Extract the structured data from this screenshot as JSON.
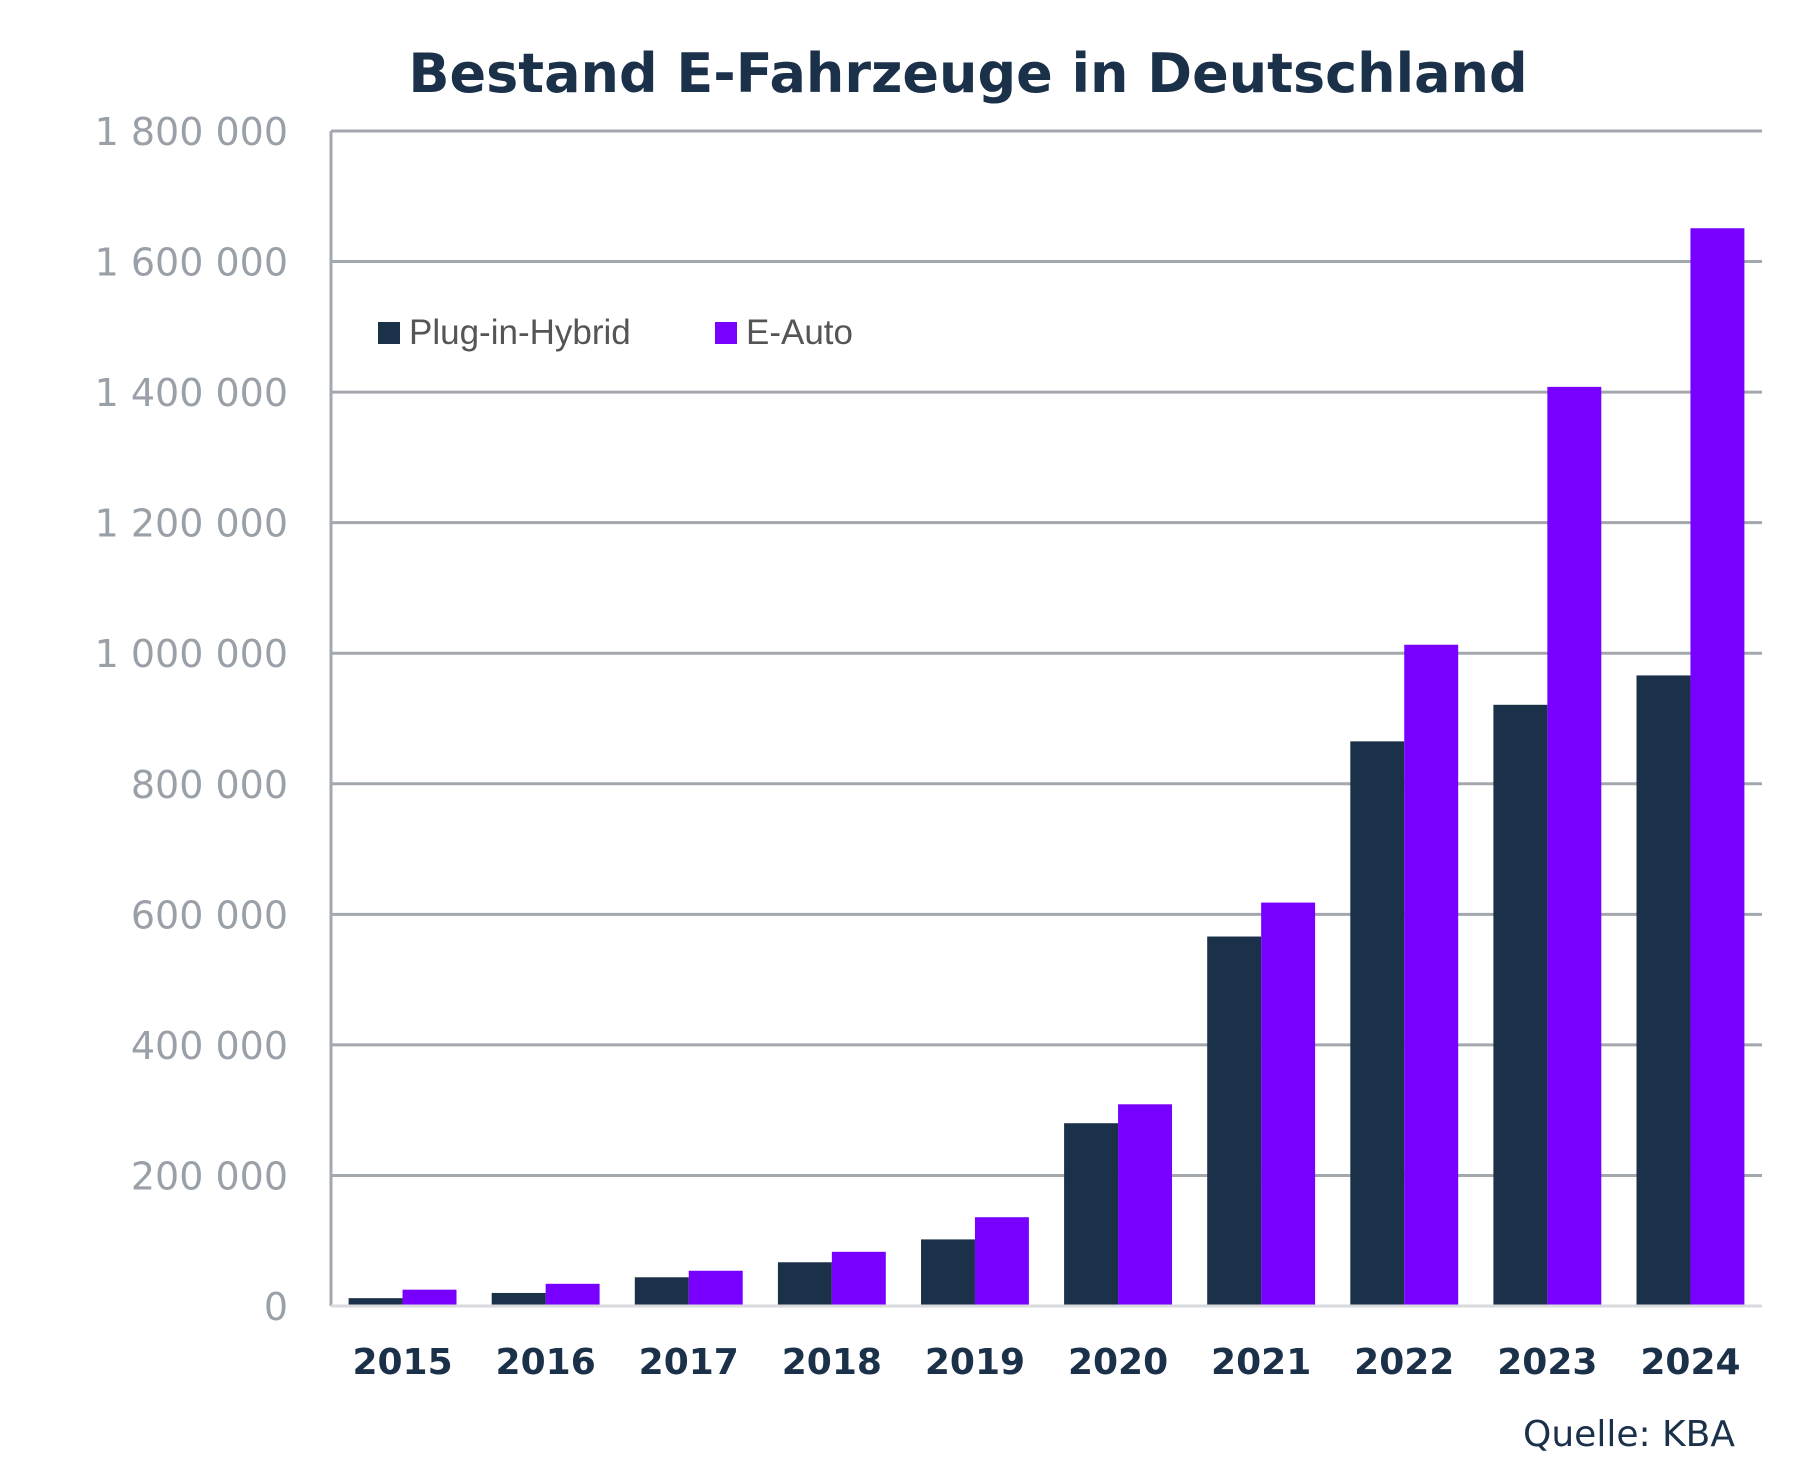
{
  "chart_data": {
    "type": "bar",
    "title": "Bestand E-Fahrzeuge in Deutschland",
    "xlabel": "",
    "ylabel": "",
    "categories": [
      "2015",
      "2016",
      "2017",
      "2018",
      "2019",
      "2020",
      "2021",
      "2022",
      "2023",
      "2024"
    ],
    "series": [
      {
        "name": "Plug-in-Hybrid",
        "color": "#1b3049",
        "values": [
          12000,
          20000,
          44000,
          67000,
          102000,
          280000,
          566000,
          865000,
          921000,
          966000
        ]
      },
      {
        "name": "E-Auto",
        "color": "#7700ff",
        "values": [
          25000,
          34000,
          54000,
          83000,
          136000,
          309000,
          618000,
          1013000,
          1408000,
          1651000
        ]
      }
    ],
    "ylim": [
      0,
      1800000
    ],
    "yticks": [
      0,
      200000,
      400000,
      600000,
      800000,
      1000000,
      1200000,
      1400000,
      1600000,
      1800000
    ],
    "ytick_labels": [
      "0",
      "200 000",
      "400 000",
      "600 000",
      "800 000",
      "1 000 000",
      "1 200 000",
      "1 400 000",
      "1 600 000",
      "1 800 000"
    ],
    "grid": true,
    "legend": "top-left",
    "source": "Quelle: KBA"
  }
}
